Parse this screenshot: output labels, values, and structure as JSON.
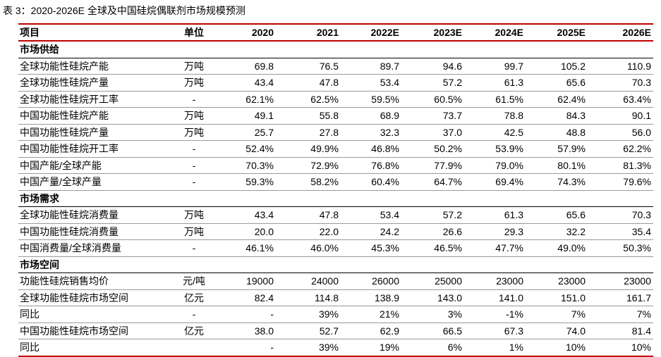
{
  "caption": "表 3：2020-2026E 全球及中国硅烷偶联剂市场规模预测",
  "headers": [
    "项目",
    "单位",
    "2020",
    "2021",
    "2022E",
    "2023E",
    "2024E",
    "2025E",
    "2026E"
  ],
  "sections": [
    {
      "title": "市场供给",
      "rows": [
        {
          "item": "全球功能性硅烷产能",
          "unit": "万吨",
          "values": [
            "69.8",
            "76.5",
            "89.7",
            "94.6",
            "99.7",
            "105.2",
            "110.9"
          ]
        },
        {
          "item": "全球功能性硅烷产量",
          "unit": "万吨",
          "values": [
            "43.4",
            "47.8",
            "53.4",
            "57.2",
            "61.3",
            "65.6",
            "70.3"
          ]
        },
        {
          "item": "全球功能性硅烷开工率",
          "unit": "-",
          "values": [
            "62.1%",
            "62.5%",
            "59.5%",
            "60.5%",
            "61.5%",
            "62.4%",
            "63.4%"
          ]
        },
        {
          "item": "中国功能性硅烷产能",
          "unit": "万吨",
          "values": [
            "49.1",
            "55.8",
            "68.9",
            "73.7",
            "78.8",
            "84.3",
            "90.1"
          ]
        },
        {
          "item": "中国功能性硅烷产量",
          "unit": "万吨",
          "values": [
            "25.7",
            "27.8",
            "32.3",
            "37.0",
            "42.5",
            "48.8",
            "56.0"
          ]
        },
        {
          "item": "中国功能性硅烷开工率",
          "unit": "-",
          "values": [
            "52.4%",
            "49.9%",
            "46.8%",
            "50.2%",
            "53.9%",
            "57.9%",
            "62.2%"
          ]
        },
        {
          "item": "中国产能/全球产能",
          "unit": "-",
          "values": [
            "70.3%",
            "72.9%",
            "76.8%",
            "77.9%",
            "79.0%",
            "80.1%",
            "81.3%"
          ]
        },
        {
          "item": "中国产量/全球产量",
          "unit": "-",
          "values": [
            "59.3%",
            "58.2%",
            "60.4%",
            "64.7%",
            "69.4%",
            "74.3%",
            "79.6%"
          ]
        }
      ]
    },
    {
      "title": "市场需求",
      "rows": [
        {
          "item": "全球功能性硅烷消费量",
          "unit": "万吨",
          "values": [
            "43.4",
            "47.8",
            "53.4",
            "57.2",
            "61.3",
            "65.6",
            "70.3"
          ]
        },
        {
          "item": "中国功能性硅烷消费量",
          "unit": "万吨",
          "values": [
            "20.0",
            "22.0",
            "24.2",
            "26.6",
            "29.3",
            "32.2",
            "35.4"
          ]
        },
        {
          "item": "中国消费量/全球消费量",
          "unit": "-",
          "values": [
            "46.1%",
            "46.0%",
            "45.3%",
            "46.5%",
            "47.7%",
            "49.0%",
            "50.3%"
          ]
        }
      ]
    },
    {
      "title": "市场空间",
      "rows": [
        {
          "item": "功能性硅烷销售均价",
          "unit": "元/吨",
          "values": [
            "19000",
            "24000",
            "26000",
            "25000",
            "23000",
            "23000",
            "23000"
          ]
        },
        {
          "item": "全球功能性硅烷市场空间",
          "unit": "亿元",
          "values": [
            "82.4",
            "114.8",
            "138.9",
            "143.0",
            "141.0",
            "151.0",
            "161.7"
          ]
        },
        {
          "item": "同比",
          "unit": "-",
          "values": [
            "-",
            "39%",
            "21%",
            "3%",
            "-1%",
            "7%",
            "7%"
          ]
        },
        {
          "item": "中国功能性硅烷市场空间",
          "unit": "亿元",
          "values": [
            "38.0",
            "52.7",
            "62.9",
            "66.5",
            "67.3",
            "74.0",
            "81.4"
          ]
        },
        {
          "item": "同比",
          "unit": "",
          "values": [
            "-",
            "39%",
            "19%",
            "6%",
            "1%",
            "10%",
            "10%"
          ]
        }
      ]
    }
  ]
}
